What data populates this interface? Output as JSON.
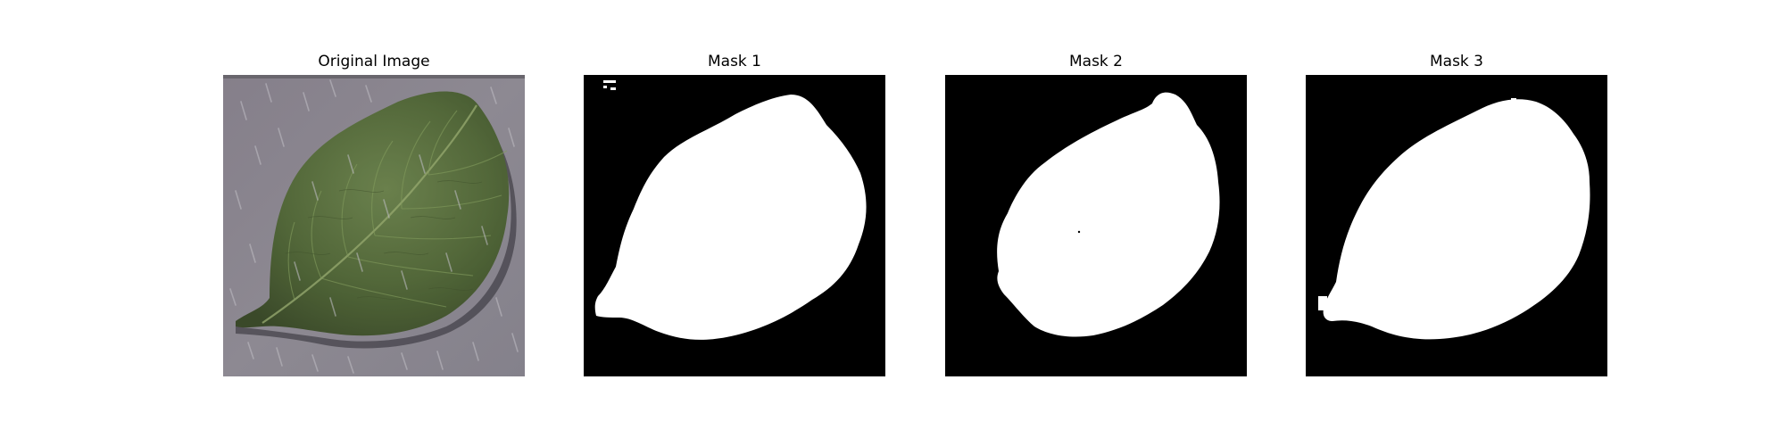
{
  "figure": {
    "panels": [
      {
        "title": "Original Image"
      },
      {
        "title": "Mask 1"
      },
      {
        "title": "Mask 2"
      },
      {
        "title": "Mask 3"
      }
    ]
  },
  "colors": {
    "mask_background": "#000000",
    "mask_foreground": "#ffffff",
    "photo_background": "#8e8a92",
    "leaf_dark": "#3e4f2c",
    "leaf_mid": "#58703e",
    "leaf_light": "#7d9458"
  }
}
